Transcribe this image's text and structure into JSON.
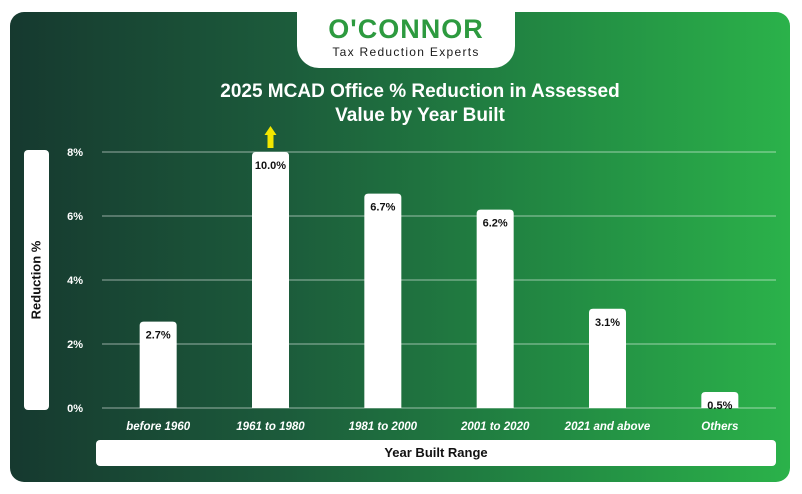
{
  "brand": {
    "name": "O'CONNOR",
    "tagline": "Tax Reduction Experts"
  },
  "chart_data": {
    "type": "bar",
    "title_line1": "2025 MCAD Office % Reduction in Assessed",
    "title_line2": "Value by Year Built",
    "xlabel": "Year Built Range",
    "ylabel": "Reduction %",
    "categories": [
      "before 1960",
      "1961 to 1980",
      "1981 to 2000",
      "2001 to 2020",
      "2021 and above",
      "Others"
    ],
    "values": [
      2.7,
      10.0,
      6.7,
      6.2,
      3.1,
      0.5
    ],
    "value_labels": [
      "2.7%",
      "10.0%",
      "6.7%",
      "6.2%",
      "3.1%",
      "0.5%"
    ],
    "ylim": [
      0,
      8
    ],
    "yticks": [
      0,
      2,
      4,
      6,
      8
    ],
    "ytick_labels": [
      "0%",
      "2%",
      "4%",
      "6%",
      "8%"
    ],
    "grid": true,
    "overflow_marker_category": "1961 to 1980",
    "colors": {
      "bar": "#ffffff",
      "overflow_arrow": "#f2e600",
      "brand_green": "#2d9a3f",
      "background_start": "#16392f",
      "background_end": "#2bb24a"
    }
  }
}
